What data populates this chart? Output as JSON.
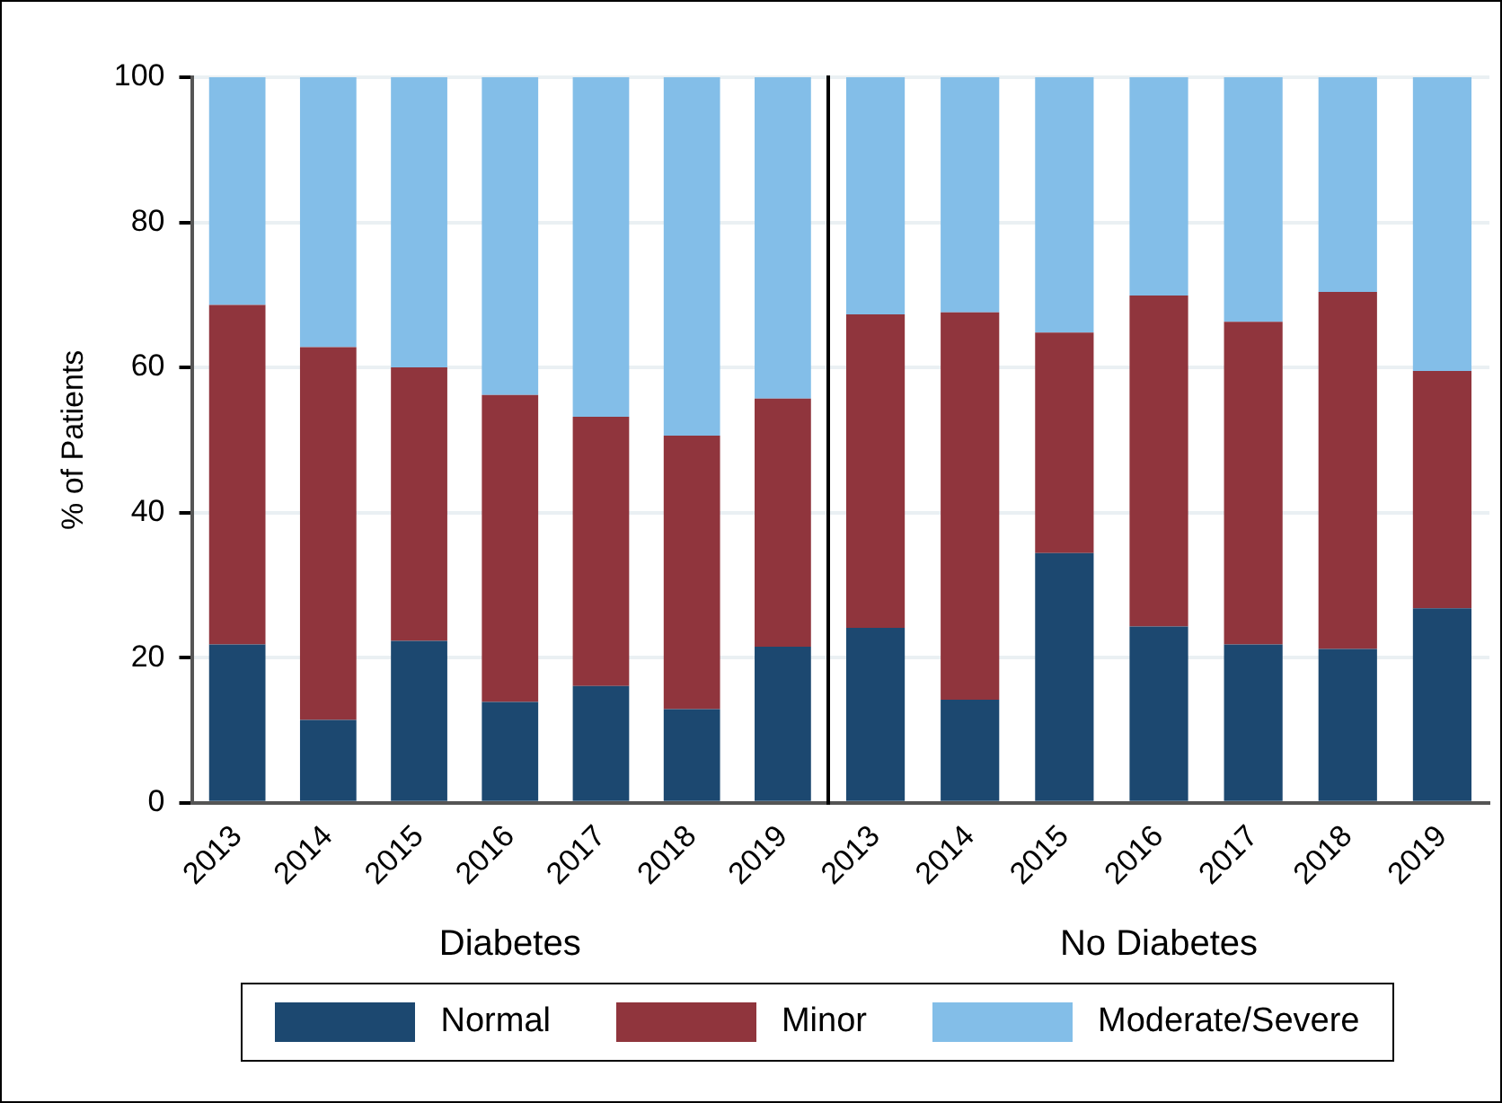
{
  "chart_data": [
    {
      "type": "bar",
      "xlabel": "Diabetes",
      "ylabel": "% of Patients",
      "categories": [
        "2013",
        "2014",
        "2015",
        "2016",
        "2017",
        "2018",
        "2019"
      ],
      "stacked": true,
      "ylim": [
        0,
        100
      ],
      "yticks": [
        0,
        20,
        40,
        60,
        80,
        100
      ],
      "grid": "y",
      "legend": "bottom",
      "series": [
        {
          "name": "Normal",
          "color": "#1c4870",
          "values": [
            21.8,
            11.4,
            22.3,
            13.9,
            16.1,
            12.9,
            21.5
          ]
        },
        {
          "name": "Minor",
          "color": "#90353d",
          "values": [
            46.8,
            51.4,
            37.7,
            42.3,
            37.1,
            37.7,
            34.2
          ]
        },
        {
          "name": "Moderate/Severe",
          "color": "#83bee8",
          "values": [
            31.4,
            37.2,
            40.0,
            43.8,
            46.8,
            49.4,
            44.3
          ]
        }
      ]
    },
    {
      "type": "bar",
      "xlabel": "No Diabetes",
      "categories": [
        "2013",
        "2014",
        "2015",
        "2016",
        "2017",
        "2018",
        "2019"
      ],
      "stacked": true,
      "ylim": [
        0,
        100
      ],
      "yticks": [
        0,
        20,
        40,
        60,
        80,
        100
      ],
      "grid": "y",
      "tick_labels": "x",
      "series": [
        {
          "color": "#1c4870",
          "values": [
            24.1,
            14.2,
            34.4,
            24.3,
            21.8,
            21.2,
            26.8
          ]
        },
        {
          "color": "#90353d",
          "values": [
            43.2,
            53.4,
            30.4,
            45.6,
            44.5,
            49.2,
            32.7
          ]
        },
        {
          "color": "#83bee8",
          "values": [
            32.7,
            32.4,
            35.2,
            30.1,
            33.7,
            29.6,
            40.5
          ]
        }
      ]
    }
  ]
}
